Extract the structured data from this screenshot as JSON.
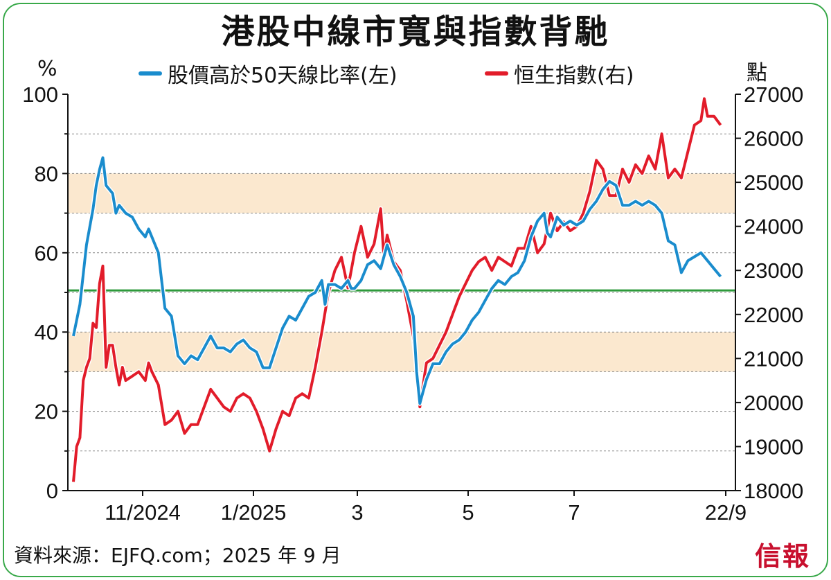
{
  "title": "港股中線市寬與指數背馳",
  "legend": {
    "series_left_label": "股價高於50天線比率(左)",
    "series_right_label": "恒生指數(右)"
  },
  "unit_left": "%",
  "unit_right": "點",
  "source": "資料來源：EJFQ.com；2025 年 9 月",
  "logo": "信報",
  "colors": {
    "blue": "#1a8ccd",
    "red": "#e21c2a",
    "green_line": "#2e9a3c",
    "band": "#fbe8cf",
    "frame": "#39a94a"
  },
  "chart_data": {
    "type": "line",
    "x_tick_labels": [
      "11/2024",
      "1/2025",
      "3",
      "5",
      "7",
      "22/9"
    ],
    "left_axis": {
      "ylim": [
        0,
        100
      ],
      "ticks": [
        0,
        20,
        40,
        60,
        80,
        100
      ]
    },
    "right_axis": {
      "ylim": [
        18000,
        27000
      ],
      "ticks": [
        18000,
        19000,
        20000,
        21000,
        22000,
        23000,
        24000,
        25000,
        26000,
        27000
      ]
    },
    "bands_left": [
      [
        30,
        40
      ],
      [
        70,
        80
      ]
    ],
    "reference_line_left": 50.5,
    "series": [
      {
        "name": "股價高於50天線比率(左)",
        "axis": "left",
        "points": [
          [
            0.0,
            39
          ],
          [
            0.01,
            47
          ],
          [
            0.02,
            62
          ],
          [
            0.03,
            71
          ],
          [
            0.035,
            77
          ],
          [
            0.04,
            81
          ],
          [
            0.045,
            84
          ],
          [
            0.05,
            77
          ],
          [
            0.06,
            75
          ],
          [
            0.065,
            70
          ],
          [
            0.07,
            72
          ],
          [
            0.08,
            70
          ],
          [
            0.09,
            69
          ],
          [
            0.1,
            66
          ],
          [
            0.11,
            64
          ],
          [
            0.115,
            66
          ],
          [
            0.12,
            64
          ],
          [
            0.13,
            60
          ],
          [
            0.135,
            53
          ],
          [
            0.14,
            46
          ],
          [
            0.15,
            44
          ],
          [
            0.16,
            34
          ],
          [
            0.17,
            32
          ],
          [
            0.18,
            34
          ],
          [
            0.19,
            33
          ],
          [
            0.2,
            36
          ],
          [
            0.21,
            39
          ],
          [
            0.22,
            36
          ],
          [
            0.23,
            36
          ],
          [
            0.24,
            35
          ],
          [
            0.25,
            37
          ],
          [
            0.26,
            38
          ],
          [
            0.27,
            36
          ],
          [
            0.28,
            35
          ],
          [
            0.29,
            31
          ],
          [
            0.3,
            31
          ],
          [
            0.31,
            36
          ],
          [
            0.32,
            41
          ],
          [
            0.33,
            44
          ],
          [
            0.34,
            43
          ],
          [
            0.35,
            46
          ],
          [
            0.36,
            49
          ],
          [
            0.37,
            50
          ],
          [
            0.38,
            53
          ],
          [
            0.385,
            47
          ],
          [
            0.39,
            52
          ],
          [
            0.4,
            52
          ],
          [
            0.41,
            51
          ],
          [
            0.42,
            53
          ],
          [
            0.425,
            51
          ],
          [
            0.43,
            51
          ],
          [
            0.44,
            53
          ],
          [
            0.45,
            57
          ],
          [
            0.46,
            58
          ],
          [
            0.47,
            56
          ],
          [
            0.48,
            62
          ],
          [
            0.49,
            57
          ],
          [
            0.5,
            54
          ],
          [
            0.51,
            50
          ],
          [
            0.52,
            44
          ],
          [
            0.525,
            30
          ],
          [
            0.53,
            22
          ],
          [
            0.535,
            25
          ],
          [
            0.54,
            28
          ],
          [
            0.55,
            32
          ],
          [
            0.56,
            32
          ],
          [
            0.57,
            35
          ],
          [
            0.58,
            37
          ],
          [
            0.59,
            38
          ],
          [
            0.6,
            40
          ],
          [
            0.61,
            43
          ],
          [
            0.62,
            45
          ],
          [
            0.63,
            48
          ],
          [
            0.64,
            51
          ],
          [
            0.65,
            53
          ],
          [
            0.66,
            52
          ],
          [
            0.67,
            54
          ],
          [
            0.68,
            55
          ],
          [
            0.69,
            58
          ],
          [
            0.7,
            64
          ],
          [
            0.71,
            68
          ],
          [
            0.72,
            70
          ],
          [
            0.725,
            65
          ],
          [
            0.73,
            64
          ],
          [
            0.74,
            69
          ],
          [
            0.75,
            67
          ],
          [
            0.76,
            68
          ],
          [
            0.77,
            67
          ],
          [
            0.78,
            68
          ],
          [
            0.79,
            71
          ],
          [
            0.8,
            73
          ],
          [
            0.81,
            76
          ],
          [
            0.82,
            78
          ],
          [
            0.83,
            77
          ],
          [
            0.84,
            72
          ],
          [
            0.85,
            72
          ],
          [
            0.86,
            73
          ],
          [
            0.87,
            72
          ],
          [
            0.88,
            73
          ],
          [
            0.89,
            72
          ],
          [
            0.9,
            70
          ],
          [
            0.91,
            63
          ],
          [
            0.92,
            62
          ],
          [
            0.93,
            55
          ],
          [
            0.94,
            58
          ],
          [
            0.95,
            59
          ],
          [
            0.96,
            60
          ],
          [
            0.97,
            58
          ],
          [
            0.98,
            56
          ],
          [
            0.99,
            54
          ]
        ]
      },
      {
        "name": "恒生指數(右)",
        "axis": "right",
        "points": [
          [
            0.0,
            18200
          ],
          [
            0.005,
            19000
          ],
          [
            0.01,
            19200
          ],
          [
            0.015,
            20500
          ],
          [
            0.02,
            20800
          ],
          [
            0.025,
            21000
          ],
          [
            0.03,
            21800
          ],
          [
            0.035,
            21700
          ],
          [
            0.04,
            22700
          ],
          [
            0.045,
            23100
          ],
          [
            0.05,
            20800
          ],
          [
            0.055,
            21300
          ],
          [
            0.06,
            21300
          ],
          [
            0.065,
            20800
          ],
          [
            0.07,
            20400
          ],
          [
            0.075,
            20800
          ],
          [
            0.08,
            20500
          ],
          [
            0.09,
            20600
          ],
          [
            0.1,
            20700
          ],
          [
            0.11,
            20500
          ],
          [
            0.115,
            20900
          ],
          [
            0.12,
            20700
          ],
          [
            0.13,
            20400
          ],
          [
            0.14,
            19500
          ],
          [
            0.15,
            19600
          ],
          [
            0.16,
            19800
          ],
          [
            0.17,
            19300
          ],
          [
            0.18,
            19500
          ],
          [
            0.19,
            19500
          ],
          [
            0.2,
            19900
          ],
          [
            0.21,
            20300
          ],
          [
            0.22,
            20100
          ],
          [
            0.23,
            19900
          ],
          [
            0.24,
            19800
          ],
          [
            0.25,
            20100
          ],
          [
            0.26,
            20200
          ],
          [
            0.27,
            20100
          ],
          [
            0.28,
            19800
          ],
          [
            0.29,
            19400
          ],
          [
            0.3,
            18900
          ],
          [
            0.31,
            19400
          ],
          [
            0.32,
            19800
          ],
          [
            0.33,
            19700
          ],
          [
            0.34,
            20100
          ],
          [
            0.35,
            20200
          ],
          [
            0.36,
            20100
          ],
          [
            0.37,
            20800
          ],
          [
            0.38,
            21600
          ],
          [
            0.39,
            22500
          ],
          [
            0.4,
            23000
          ],
          [
            0.41,
            23300
          ],
          [
            0.42,
            22600
          ],
          [
            0.43,
            23400
          ],
          [
            0.44,
            24000
          ],
          [
            0.45,
            23300
          ],
          [
            0.46,
            23600
          ],
          [
            0.47,
            24400
          ],
          [
            0.475,
            23300
          ],
          [
            0.48,
            23800
          ],
          [
            0.49,
            23200
          ],
          [
            0.5,
            23000
          ],
          [
            0.51,
            22300
          ],
          [
            0.52,
            21500
          ],
          [
            0.525,
            20800
          ],
          [
            0.53,
            19900
          ],
          [
            0.54,
            20900
          ],
          [
            0.55,
            21000
          ],
          [
            0.56,
            21300
          ],
          [
            0.57,
            21600
          ],
          [
            0.58,
            22000
          ],
          [
            0.59,
            22400
          ],
          [
            0.6,
            22700
          ],
          [
            0.61,
            23000
          ],
          [
            0.62,
            23200
          ],
          [
            0.63,
            23300
          ],
          [
            0.64,
            23000
          ],
          [
            0.65,
            23300
          ],
          [
            0.66,
            23200
          ],
          [
            0.67,
            23100
          ],
          [
            0.68,
            23500
          ],
          [
            0.69,
            23500
          ],
          [
            0.7,
            24000
          ],
          [
            0.71,
            23400
          ],
          [
            0.72,
            23600
          ],
          [
            0.73,
            24300
          ],
          [
            0.74,
            23900
          ],
          [
            0.75,
            24100
          ],
          [
            0.76,
            23900
          ],
          [
            0.77,
            24000
          ],
          [
            0.78,
            24300
          ],
          [
            0.79,
            24800
          ],
          [
            0.8,
            25500
          ],
          [
            0.81,
            25300
          ],
          [
            0.82,
            24700
          ],
          [
            0.83,
            24700
          ],
          [
            0.84,
            25300
          ],
          [
            0.85,
            25000
          ],
          [
            0.86,
            25400
          ],
          [
            0.87,
            25200
          ],
          [
            0.88,
            25600
          ],
          [
            0.89,
            25300
          ],
          [
            0.9,
            26100
          ],
          [
            0.91,
            25100
          ],
          [
            0.92,
            25300
          ],
          [
            0.93,
            25100
          ],
          [
            0.94,
            25700
          ],
          [
            0.95,
            26300
          ],
          [
            0.96,
            26400
          ],
          [
            0.965,
            26900
          ],
          [
            0.97,
            26500
          ],
          [
            0.98,
            26500
          ],
          [
            0.99,
            26300
          ]
        ]
      }
    ]
  }
}
